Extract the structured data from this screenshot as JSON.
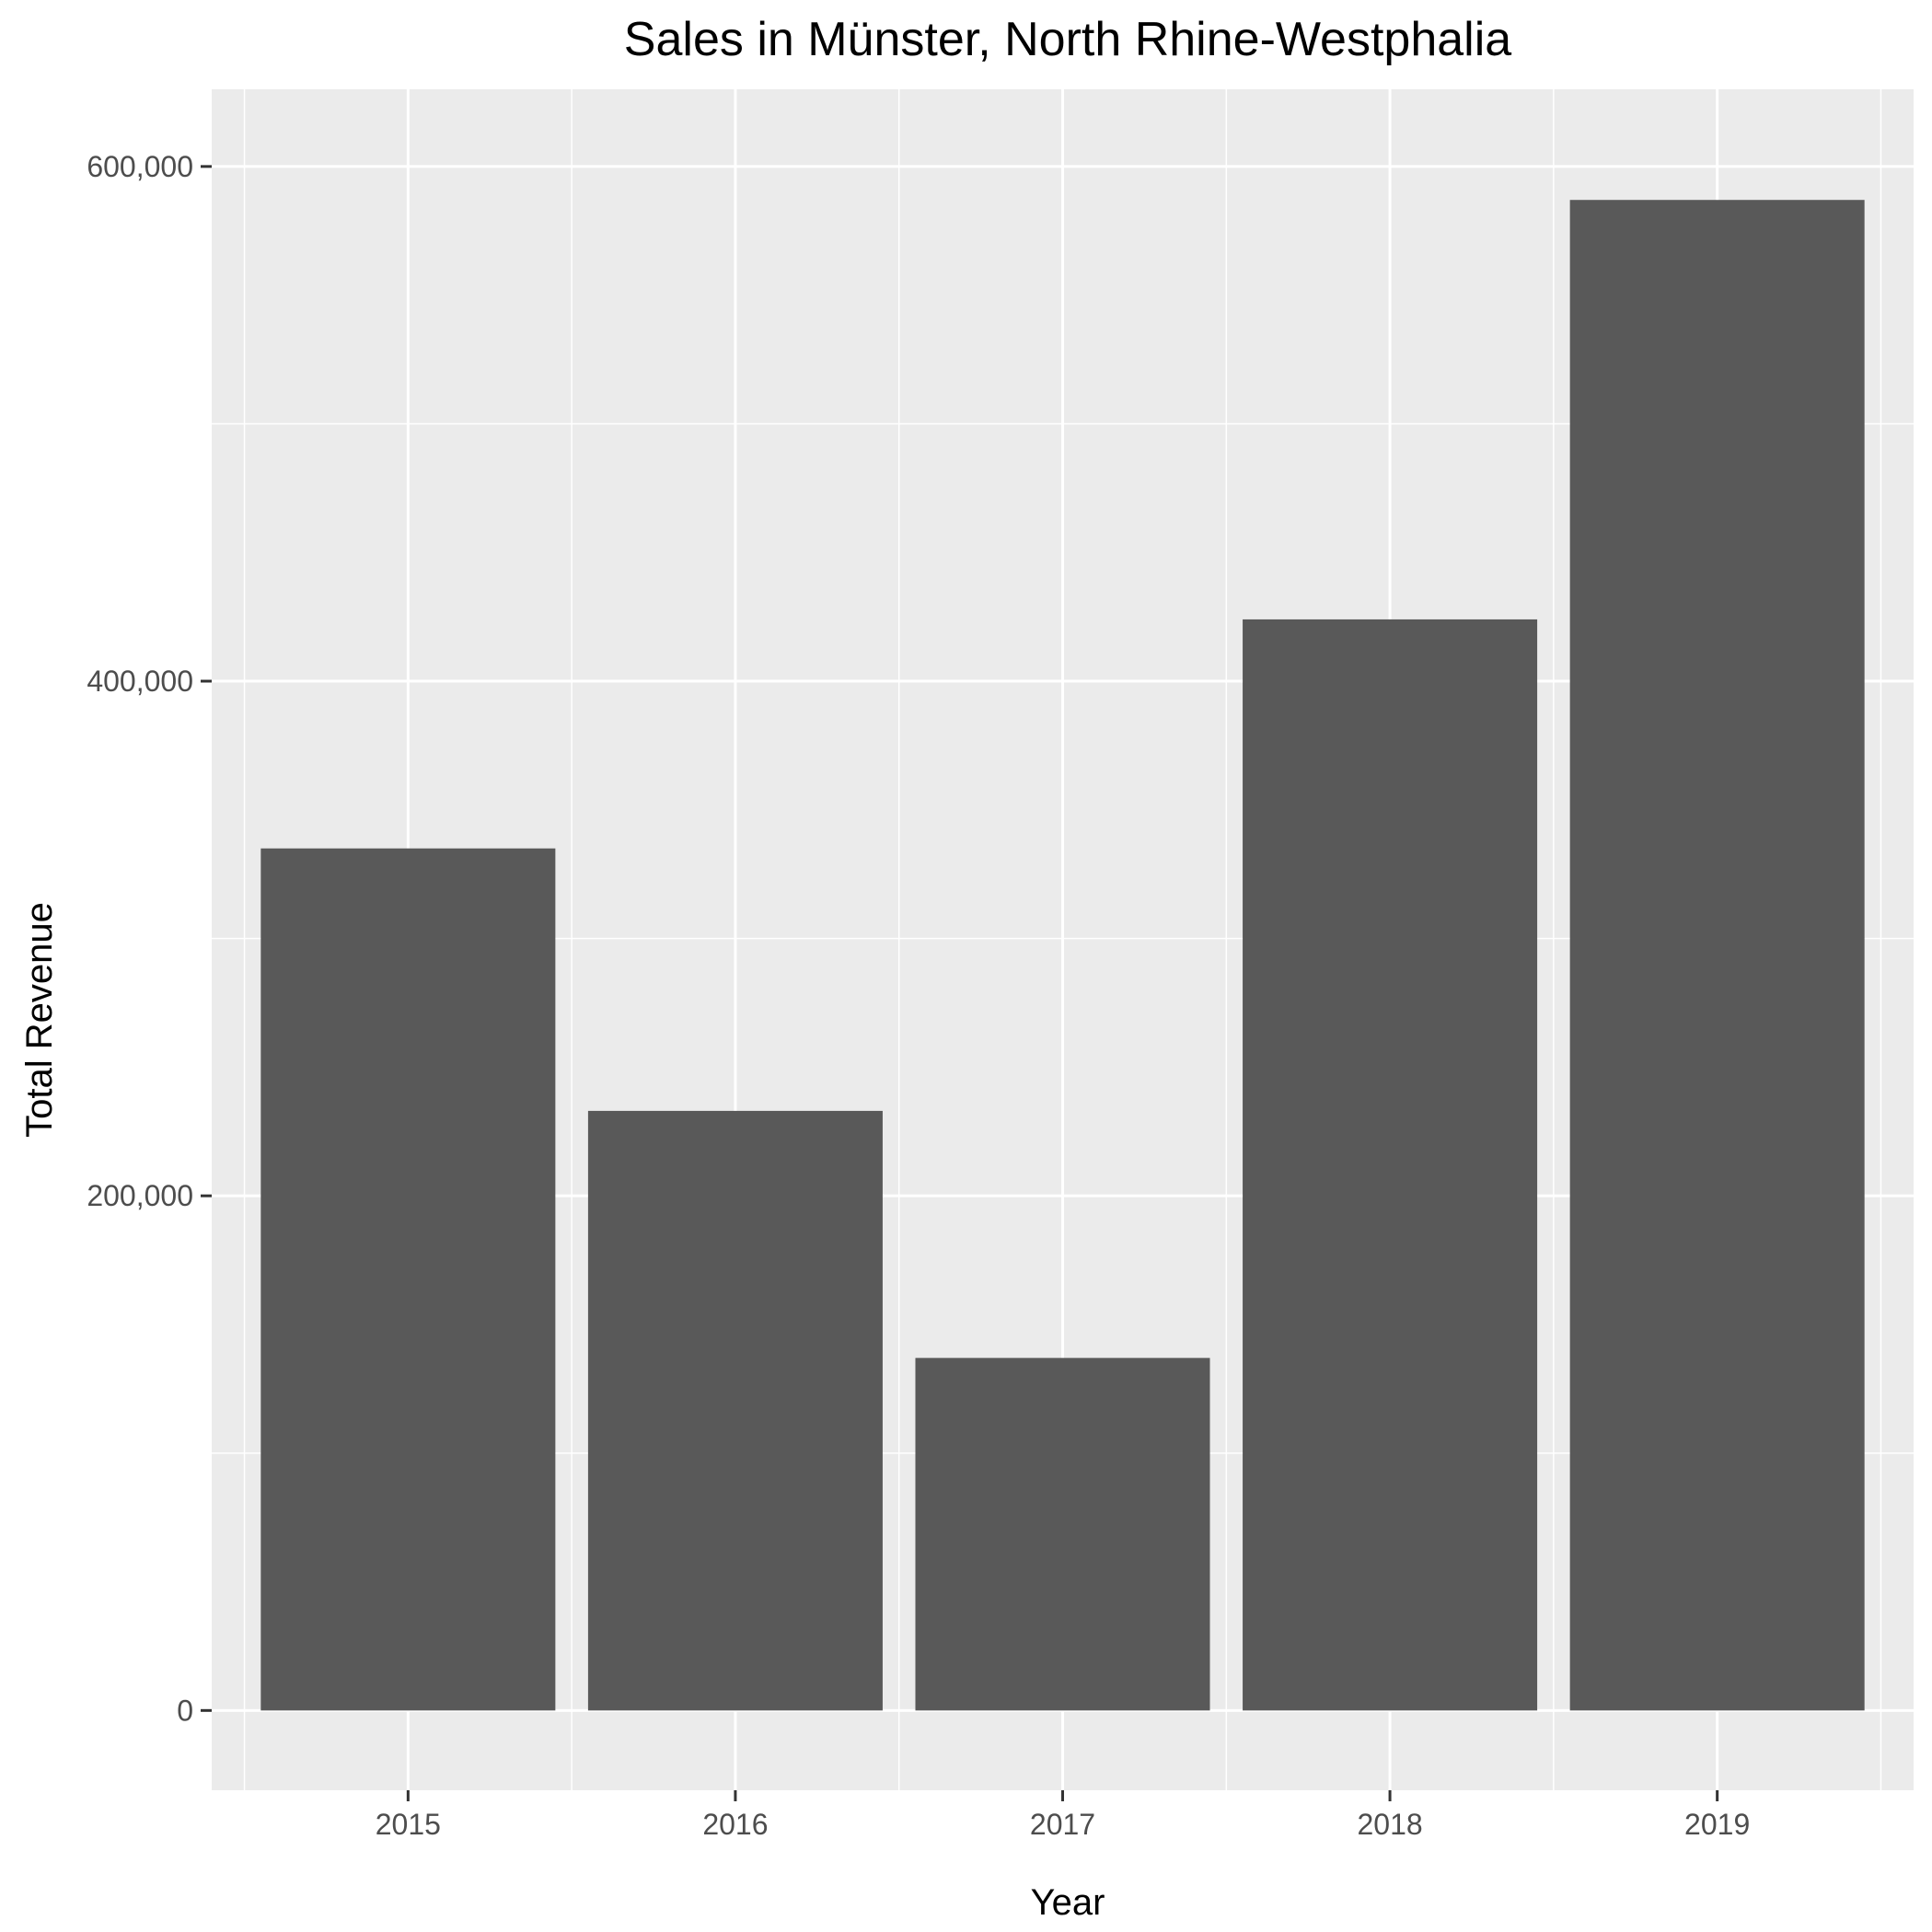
{
  "chart_data": {
    "type": "bar",
    "title": "Sales in Münster, North Rhine-Westphalia",
    "xlabel": "Year",
    "ylabel": "Total Revenue",
    "categories": [
      "2015",
      "2016",
      "2017",
      "2018",
      "2019"
    ],
    "values": [
      335000,
      233000,
      137000,
      424000,
      587000
    ],
    "ylim": [
      -31000,
      630000
    ],
    "yticks": [
      0,
      200000,
      400000,
      600000
    ],
    "ytick_labels": [
      "0",
      "200,000",
      "400,000",
      "600,000"
    ],
    "y_minor_ticks": [
      100000,
      300000,
      500000
    ],
    "grid": true,
    "legend": "none",
    "colors": {
      "panel": "#ebebeb",
      "bar": "#595959",
      "grid": "#ffffff"
    }
  }
}
